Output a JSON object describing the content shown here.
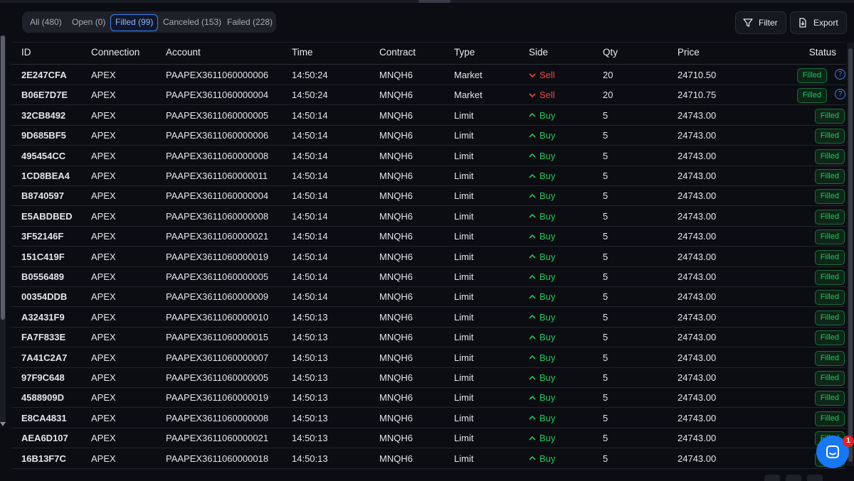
{
  "tabs": [
    {
      "label": "All (480)"
    },
    {
      "label": "Open (0)"
    },
    {
      "label": "Filled (99)"
    },
    {
      "label": "Canceled (153)"
    },
    {
      "label": "Failed (228)"
    }
  ],
  "active_tab": "Filled (99)",
  "toolbar": {
    "filter_label": "Filter",
    "export_label": "Export"
  },
  "columns": {
    "id": "ID",
    "connection": "Connection",
    "account": "Account",
    "time": "Time",
    "contract": "Contract",
    "type": "Type",
    "side": "Side",
    "qty": "Qty",
    "price": "Price",
    "status": "Status"
  },
  "rows": [
    {
      "id": "2E247CFA",
      "connection": "APEX",
      "account": "PAAPEX3611060000006",
      "time": "14:50:24",
      "contract": "MNQH6",
      "type": "Market",
      "side": "Sell",
      "qty": "20",
      "price": "24710.50",
      "status": "Filled",
      "help": "?"
    },
    {
      "id": "B06E7D7E",
      "connection": "APEX",
      "account": "PAAPEX3611060000004",
      "time": "14:50:24",
      "contract": "MNQH6",
      "type": "Market",
      "side": "Sell",
      "qty": "20",
      "price": "24710.75",
      "status": "Filled",
      "help": "?"
    },
    {
      "id": "32CB8492",
      "connection": "APEX",
      "account": "PAAPEX3611060000005",
      "time": "14:50:14",
      "contract": "MNQH6",
      "type": "Limit",
      "side": "Buy",
      "qty": "5",
      "price": "24743.00",
      "status": "Filled"
    },
    {
      "id": "9D685BF5",
      "connection": "APEX",
      "account": "PAAPEX3611060000006",
      "time": "14:50:14",
      "contract": "MNQH6",
      "type": "Limit",
      "side": "Buy",
      "qty": "5",
      "price": "24743.00",
      "status": "Filled"
    },
    {
      "id": "495454CC",
      "connection": "APEX",
      "account": "PAAPEX3611060000008",
      "time": "14:50:14",
      "contract": "MNQH6",
      "type": "Limit",
      "side": "Buy",
      "qty": "5",
      "price": "24743.00",
      "status": "Filled"
    },
    {
      "id": "1CD8BEA4",
      "connection": "APEX",
      "account": "PAAPEX3611060000011",
      "time": "14:50:14",
      "contract": "MNQH6",
      "type": "Limit",
      "side": "Buy",
      "qty": "5",
      "price": "24743.00",
      "status": "Filled"
    },
    {
      "id": "B8740597",
      "connection": "APEX",
      "account": "PAAPEX3611060000004",
      "time": "14:50:14",
      "contract": "MNQH6",
      "type": "Limit",
      "side": "Buy",
      "qty": "5",
      "price": "24743.00",
      "status": "Filled"
    },
    {
      "id": "E5ABDBED",
      "connection": "APEX",
      "account": "PAAPEX3611060000008",
      "time": "14:50:14",
      "contract": "MNQH6",
      "type": "Limit",
      "side": "Buy",
      "qty": "5",
      "price": "24743.00",
      "status": "Filled"
    },
    {
      "id": "3F52146F",
      "connection": "APEX",
      "account": "PAAPEX3611060000021",
      "time": "14:50:14",
      "contract": "MNQH6",
      "type": "Limit",
      "side": "Buy",
      "qty": "5",
      "price": "24743.00",
      "status": "Filled"
    },
    {
      "id": "151C419F",
      "connection": "APEX",
      "account": "PAAPEX3611060000019",
      "time": "14:50:14",
      "contract": "MNQH6",
      "type": "Limit",
      "side": "Buy",
      "qty": "5",
      "price": "24743.00",
      "status": "Filled"
    },
    {
      "id": "B0556489",
      "connection": "APEX",
      "account": "PAAPEX3611060000005",
      "time": "14:50:14",
      "contract": "MNQH6",
      "type": "Limit",
      "side": "Buy",
      "qty": "5",
      "price": "24743.00",
      "status": "Filled"
    },
    {
      "id": "00354DDB",
      "connection": "APEX",
      "account": "PAAPEX3611060000009",
      "time": "14:50:14",
      "contract": "MNQH6",
      "type": "Limit",
      "side": "Buy",
      "qty": "5",
      "price": "24743.00",
      "status": "Filled"
    },
    {
      "id": "A32431F9",
      "connection": "APEX",
      "account": "PAAPEX3611060000010",
      "time": "14:50:13",
      "contract": "MNQH6",
      "type": "Limit",
      "side": "Buy",
      "qty": "5",
      "price": "24743.00",
      "status": "Filled"
    },
    {
      "id": "FA7F833E",
      "connection": "APEX",
      "account": "PAAPEX3611060000015",
      "time": "14:50:13",
      "contract": "MNQH6",
      "type": "Limit",
      "side": "Buy",
      "qty": "5",
      "price": "24743.00",
      "status": "Filled"
    },
    {
      "id": "7A41C2A7",
      "connection": "APEX",
      "account": "PAAPEX3611060000007",
      "time": "14:50:13",
      "contract": "MNQH6",
      "type": "Limit",
      "side": "Buy",
      "qty": "5",
      "price": "24743.00",
      "status": "Filled"
    },
    {
      "id": "97F9C648",
      "connection": "APEX",
      "account": "PAAPEX3611060000005",
      "time": "14:50:13",
      "contract": "MNQH6",
      "type": "Limit",
      "side": "Buy",
      "qty": "5",
      "price": "24743.00",
      "status": "Filled"
    },
    {
      "id": "4588909D",
      "connection": "APEX",
      "account": "PAAPEX3611060000019",
      "time": "14:50:13",
      "contract": "MNQH6",
      "type": "Limit",
      "side": "Buy",
      "qty": "5",
      "price": "24743.00",
      "status": "Filled"
    },
    {
      "id": "E8CA4831",
      "connection": "APEX",
      "account": "PAAPEX3611060000008",
      "time": "14:50:13",
      "contract": "MNQH6",
      "type": "Limit",
      "side": "Buy",
      "qty": "5",
      "price": "24743.00",
      "status": "Filled"
    },
    {
      "id": "AEA6D107",
      "connection": "APEX",
      "account": "PAAPEX3611060000021",
      "time": "14:50:13",
      "contract": "MNQH6",
      "type": "Limit",
      "side": "Buy",
      "qty": "5",
      "price": "24743.00",
      "status": "Filled"
    },
    {
      "id": "16B13F7C",
      "connection": "APEX",
      "account": "PAAPEX3611060000018",
      "time": "14:50:13",
      "contract": "MNQH6",
      "type": "Limit",
      "side": "Buy",
      "qty": "5",
      "price": "24743.00",
      "status": "Filled"
    }
  ],
  "chat": {
    "badge_count": "1"
  },
  "icons": {
    "filter": "filter-icon",
    "export": "export-icon",
    "sell": "chevron-down-icon",
    "buy": "chevron-up-icon",
    "help": "help-circle-icon",
    "chat": "chat-icon"
  },
  "colors": {
    "accent": "#3b82f6",
    "buy": "#22c55e",
    "sell": "#ef4444",
    "badge_bg": "#0d2617",
    "chat": "#1877f2",
    "notification": "#e02424"
  }
}
